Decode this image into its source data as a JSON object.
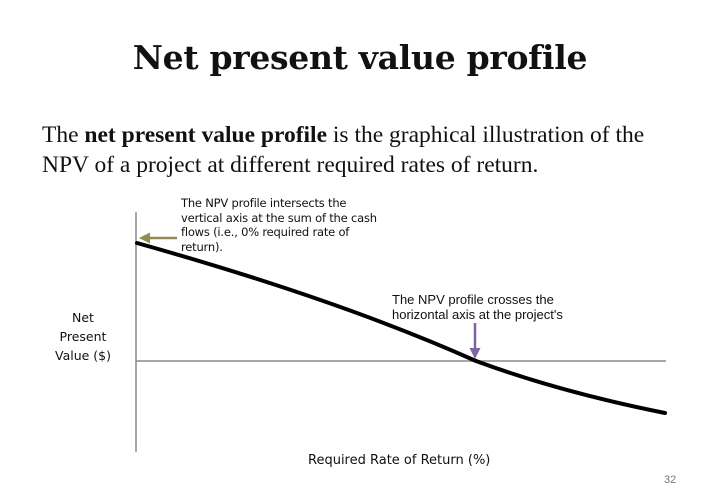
{
  "slide": {
    "title": "Net present value profile",
    "intro_start": "The ",
    "intro_bold": "net present value profile",
    "intro_rest": " is the graphical illustration of the NPV of a project at different required rates of return.",
    "page_number": "32"
  },
  "chart": {
    "y_axis_label": [
      "Net",
      "Present",
      "Value ($)"
    ],
    "x_axis_label": "Required Rate of Return (%)",
    "annotation_vertical_intercept": "The NPV profile intersects the vertical axis at the sum of the cash flows (i.e., 0% required rate of return).",
    "annotation_horizontal_intercept": "The NPV profile crosses the horizontal axis at the project's",
    "colors": {
      "curve": "#000000",
      "axes": "#8a8a8a",
      "left_arrow": "#948a54",
      "down_arrow": "#8064a2"
    }
  }
}
